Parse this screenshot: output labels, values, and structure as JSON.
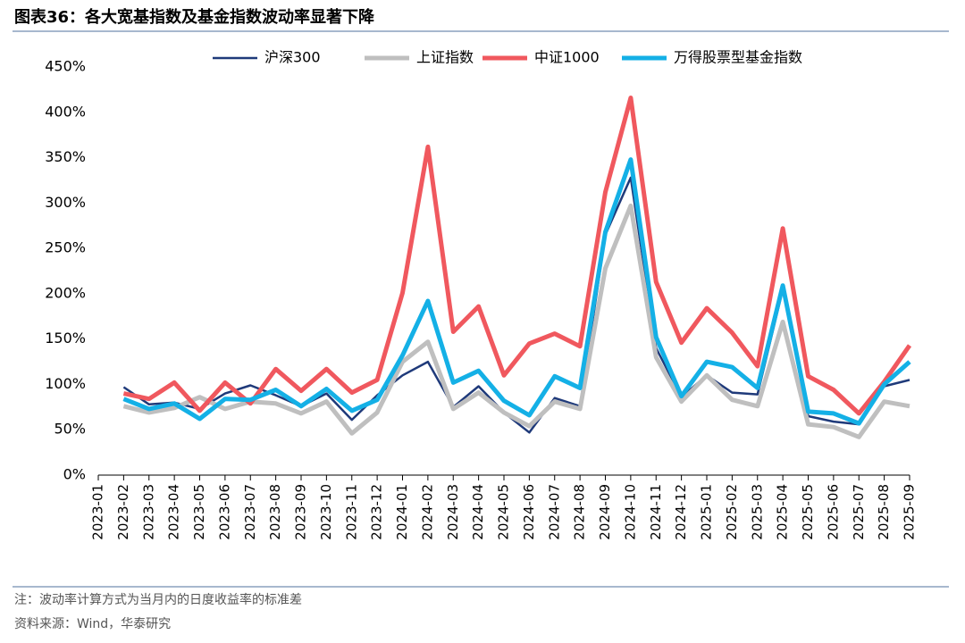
{
  "title": "图表36：各大宽基指数及基金指数波动率显著下降",
  "note": "注：波动率计算方式为当月内的日度收益率的标准差",
  "source": "资料来源：Wind，华泰研究",
  "chart_data": {
    "type": "line",
    "categories": [
      "2023-01",
      "2023-02",
      "2023-03",
      "2023-04",
      "2023-05",
      "2023-06",
      "2023-07",
      "2023-08",
      "2023-09",
      "2023-10",
      "2023-11",
      "2023-12",
      "2024-01",
      "2024-02",
      "2024-03",
      "2024-04",
      "2024-05",
      "2024-06",
      "2024-07",
      "2024-08",
      "2024-09",
      "2024-10",
      "2024-11",
      "2024-12",
      "2025-01",
      "2025-02",
      "2025-03",
      "2025-04",
      "2025-05",
      "2025-06",
      "2025-07",
      "2025-08",
      "2025-09"
    ],
    "series": [
      {
        "name": "沪深300",
        "color": "#1f3a7a",
        "width": 2.5,
        "values": [
          null,
          97,
          78,
          80,
          73,
          90,
          99,
          88,
          76,
          90,
          61,
          88,
          110,
          125,
          75,
          98,
          69,
          47,
          85,
          76,
          265,
          328,
          140,
          86,
          110,
          91,
          89,
          205,
          65,
          59,
          56,
          98,
          105
        ]
      },
      {
        "name": "上证指数",
        "color": "#bfbfbf",
        "width": 5,
        "values": [
          null,
          76,
          69,
          74,
          86,
          73,
          81,
          79,
          68,
          81,
          46,
          69,
          125,
          147,
          73,
          91,
          69,
          54,
          81,
          73,
          228,
          297,
          130,
          81,
          110,
          83,
          76,
          169,
          56,
          53,
          42,
          81,
          76
        ]
      },
      {
        "name": "中证1000",
        "color": "#f0585e",
        "width": 5,
        "values": [
          null,
          90,
          84,
          102,
          71,
          102,
          79,
          117,
          93,
          117,
          91,
          105,
          201,
          362,
          158,
          186,
          110,
          145,
          156,
          142,
          312,
          416,
          213,
          146,
          184,
          157,
          120,
          272,
          109,
          94,
          68,
          103,
          143
        ]
      },
      {
        "name": "万得股票型基金指数",
        "color": "#14b0e6",
        "width": 5,
        "values": [
          null,
          84,
          73,
          79,
          62,
          84,
          83,
          94,
          76,
          95,
          71,
          83,
          132,
          192,
          102,
          115,
          82,
          66,
          109,
          96,
          268,
          348,
          152,
          87,
          125,
          119,
          96,
          209,
          70,
          68,
          57,
          100,
          125
        ]
      }
    ],
    "ylim": [
      0,
      450
    ],
    "yticks": [
      {
        "value": 0,
        "label": "0%"
      },
      {
        "value": 50,
        "label": "50%"
      },
      {
        "value": 100,
        "label": "100%"
      },
      {
        "value": 150,
        "label": "150%"
      },
      {
        "value": 200,
        "label": "200%"
      },
      {
        "value": 250,
        "label": "250%"
      },
      {
        "value": 300,
        "label": "300%"
      },
      {
        "value": 350,
        "label": "350%"
      },
      {
        "value": 400,
        "label": "400%"
      },
      {
        "value": 450,
        "label": "450%"
      }
    ],
    "legend": "top"
  }
}
